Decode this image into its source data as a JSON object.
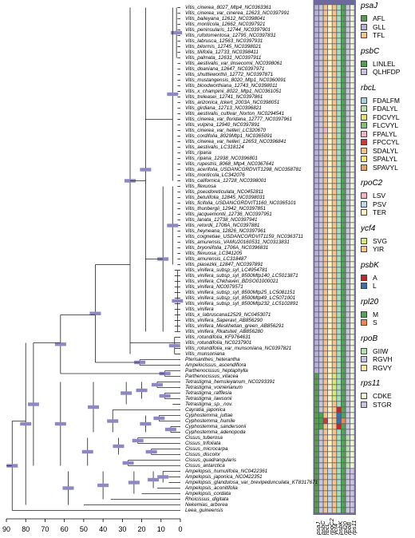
{
  "taxa": [
    "Vitis_cinerea_8027_Mtp4_NC0363361",
    "Vitis_cinerea_var_cinerea_12623_NC0397991",
    "Vitis_baileyana_12612_NC0398041",
    "Vitis_monticola_12662_NC0397921",
    "Vitis_peninsularis_12744_NC0397901",
    "Vitis_rufotomentosa_12795_NC0397831",
    "Vitis_labrusca_12563_NC0397931",
    "Vitis_bilormis_12745_NC0398021",
    "Vitis_tiliifolia_12733_NC0398411",
    "Vitis_palmata_12631_NC0397911",
    "Vitis_aestivalis_var_linsecomii_NC0398061",
    "Vitis_doaniana_12647_NC0397971",
    "Vitis_shuttleworthii_12772_NC0397871",
    "Vitis_mustangensis_8020_Mtp1_NC0360091",
    "Vitis_bloodworthiana_12743_NC0398011",
    "Vitis_x_champinii_8022_Mtp1_NC0361051",
    "Vitis_treleasei_12741_NC0397861",
    "Vitis_arizonica_Ickert_2003A_NC0398051",
    "Vitis_girdiana_12713_NC0396821",
    "Vitis_aestivalis_cultivar_Norton_NC0294541",
    "Vitis_cinerea_var_floridana_12777_NC0397961",
    "Vitis_vulpina_12940_NC0397891",
    "Vitis_cinerea_var_helleri_LC320670",
    "Vitis_cordifolia_8029Mtp1_NC0365091",
    "Vitis_cinerea_var_helleri_12653_NC0396841",
    "Vitis_aestivalis_LC318124",
    "Vitis_riparia",
    "Vitis_riparia_12938_NC0396801",
    "Vitis_rupestris_8068_Mtp4_NC0367641",
    "Vitis_acerifolia_USDANCGRDVIT1298_NC0358781",
    "Vitis_monticola_LC342076",
    "Vitis_californica_12728_NC0398001",
    "Vitis_flexuosa",
    "Vitis_pseudoreticulata_NC0452811",
    "Vitis_betulifolia_12845_NC0398031",
    "Vitis_ficifolia_USDANCGRDVIT1160_NC0365101",
    "Vitis_thunbergii_12942_NC0397851",
    "Vitis_jacquemontii_12736_NC0397951",
    "Vitis_lanata_12738_NC0397941",
    "Vitis_retordii_1708A_NC0397881",
    "Vitis_heyneana_12826_NC0397961",
    "Vitis_coignetiae_USDANCGRDVIT1159_NC0363711",
    "Vitis_amurensis_VAMU20160531_NC0313831",
    "Vitis_bryoniifolia_1706A_NC0396831",
    "Vitis_flexuosa_LC341205",
    "Vitis_amurensis_LC318487",
    "Vitis_piasezkii_12847_NC0397891",
    "Vitis_vinifera_subsp_syl_LC4954781",
    "Vitis_vinifera_subsp_syl_8500Mtp140_LC5013871",
    "Vitis_vinifera_Chkhaveri_BDSO01000021",
    "Vitis_vinifera_NC0079571",
    "Vitis_vinifera_subsp_syl_8500Mtp25_LC5081151",
    "Vitis_vinifera_subsp_syl_8500Mtp49_LC5071001",
    "Vitis_vinifera_subsp_syl_8500Mtp232_LC5102891",
    "Vitis_vinifera",
    "Vitis_x_labruscana12529_NC0453071",
    "Vitis_vinifera_Saperavi_AB856290",
    "Vitis_vinifera_Meskhetian_green_AB856291",
    "Vitis_vinifera_Rkatsiteli_AB856280",
    "Vitis_rotundifolia_KF9764631",
    "Vitis_rotundifolia_NC0237901",
    "Vitis_rotundifolia_var_munsoniana_NC0397821",
    "Vitis_munsoniana",
    "Pterisanthes_heterantha",
    "Ampelocissus_ascendiflora",
    "Parthenocissus_heptaphylla",
    "Parthenocissus_vitacea",
    "Tetrastigma_hemsleyanum_NC0293391",
    "Tetrastigma_voinierianum",
    "Tetrastigma_rafflesia",
    "Tetrastigma_lawsonii",
    "Tetrastigma_sp._nov.",
    "Cayratia_japonica",
    "Cyphostemma_juttae",
    "Cyphostemma_humile",
    "Cyphostemma_sandersonii",
    "Cyphostemma_adenopoda",
    "Cissus_tuberosa",
    "Cissus_trifoliata",
    "Cissus_microcarpa",
    "Cissus_discolor",
    "Cissus_quadrangularis",
    "Cissus_antarctica",
    "Ampelopsis_humulifolia_NC0422361",
    "Ampelopsis_japonica_NC0422351",
    "Ampelopsis_glandulosa_var_brevipedunculata_KT8317671",
    "Ampelopsis_aconitifolia",
    "Ampelopsis_cordata",
    "Rhoicissus_digitata",
    "Nekemias_arborea",
    "Leea_guineensis"
  ],
  "axis": {
    "ticks": [
      "90",
      "80",
      "70",
      "60",
      "50",
      "40",
      "30",
      "20",
      "10",
      "0"
    ]
  },
  "columns": [
    "psaJ",
    "psbC",
    "rbcL",
    "rpoC2",
    "ycf4",
    "psbK",
    "rpl20",
    "rpoB",
    "rps11"
  ],
  "legend": [
    {
      "gene": "psaJ",
      "items": [
        {
          "label": "AFL",
          "color": "#5b9a55"
        },
        {
          "label": "GLL",
          "color": "#b7b2d4"
        },
        {
          "label": "TFL",
          "color": "#f4c48c"
        }
      ]
    },
    {
      "gene": "psbC",
      "items": [
        {
          "label": "LINLEL",
          "color": "#4aa552"
        },
        {
          "label": "QLHFDP",
          "color": "#c8c3e0"
        }
      ]
    },
    {
      "gene": "rbcL",
      "items": [
        {
          "label": "FDALFM",
          "color": "#a7d4dc"
        },
        {
          "label": "FDALYL",
          "color": "#b7dda8"
        },
        {
          "label": "FDCVYL",
          "color": "#e1e07a"
        },
        {
          "label": "FLCVYL",
          "color": "#84c080"
        },
        {
          "label": "FPALYL",
          "color": "#f3b3c4"
        },
        {
          "label": "FPCCYL",
          "color": "#d1363a"
        },
        {
          "label": "SDALYL",
          "color": "#f4c48c"
        },
        {
          "label": "SPALYL",
          "color": "#f6e37a"
        },
        {
          "label": "SPAVYL",
          "color": "#e2a46a"
        }
      ]
    },
    {
      "gene": "rpoC2",
      "items": [
        {
          "label": "LSV",
          "color": "#f3b3c4"
        },
        {
          "label": "PSV",
          "color": "#bfd7ea"
        },
        {
          "label": "TER",
          "color": "#fff3c2"
        }
      ]
    },
    {
      "gene": "ycf4",
      "items": [
        {
          "label": "SVG",
          "color": "#d6e97a"
        },
        {
          "label": "YIR",
          "color": "#f4c48c"
        }
      ]
    },
    {
      "gene": "psbK",
      "items": [
        {
          "label": "A",
          "color": "#c5262b"
        },
        {
          "label": "L",
          "color": "#3c6fa8"
        }
      ]
    },
    {
      "gene": "rpl20",
      "items": [
        {
          "label": "M",
          "color": "#55a35a"
        },
        {
          "label": "S",
          "color": "#e88a4c"
        }
      ]
    },
    {
      "gene": "rpoB",
      "items": [
        {
          "label": "GIIW",
          "color": "#b9ddb0"
        },
        {
          "label": "RGVH",
          "color": "#c8c3e0"
        },
        {
          "label": "RGVY",
          "color": "#f6e9a8"
        }
      ]
    },
    {
      "gene": "rps11",
      "items": [
        {
          "label": "CDKE",
          "color": "#eef6d8"
        },
        {
          "label": "STGR",
          "color": "#c8c3e0"
        }
      ]
    }
  ]
}
